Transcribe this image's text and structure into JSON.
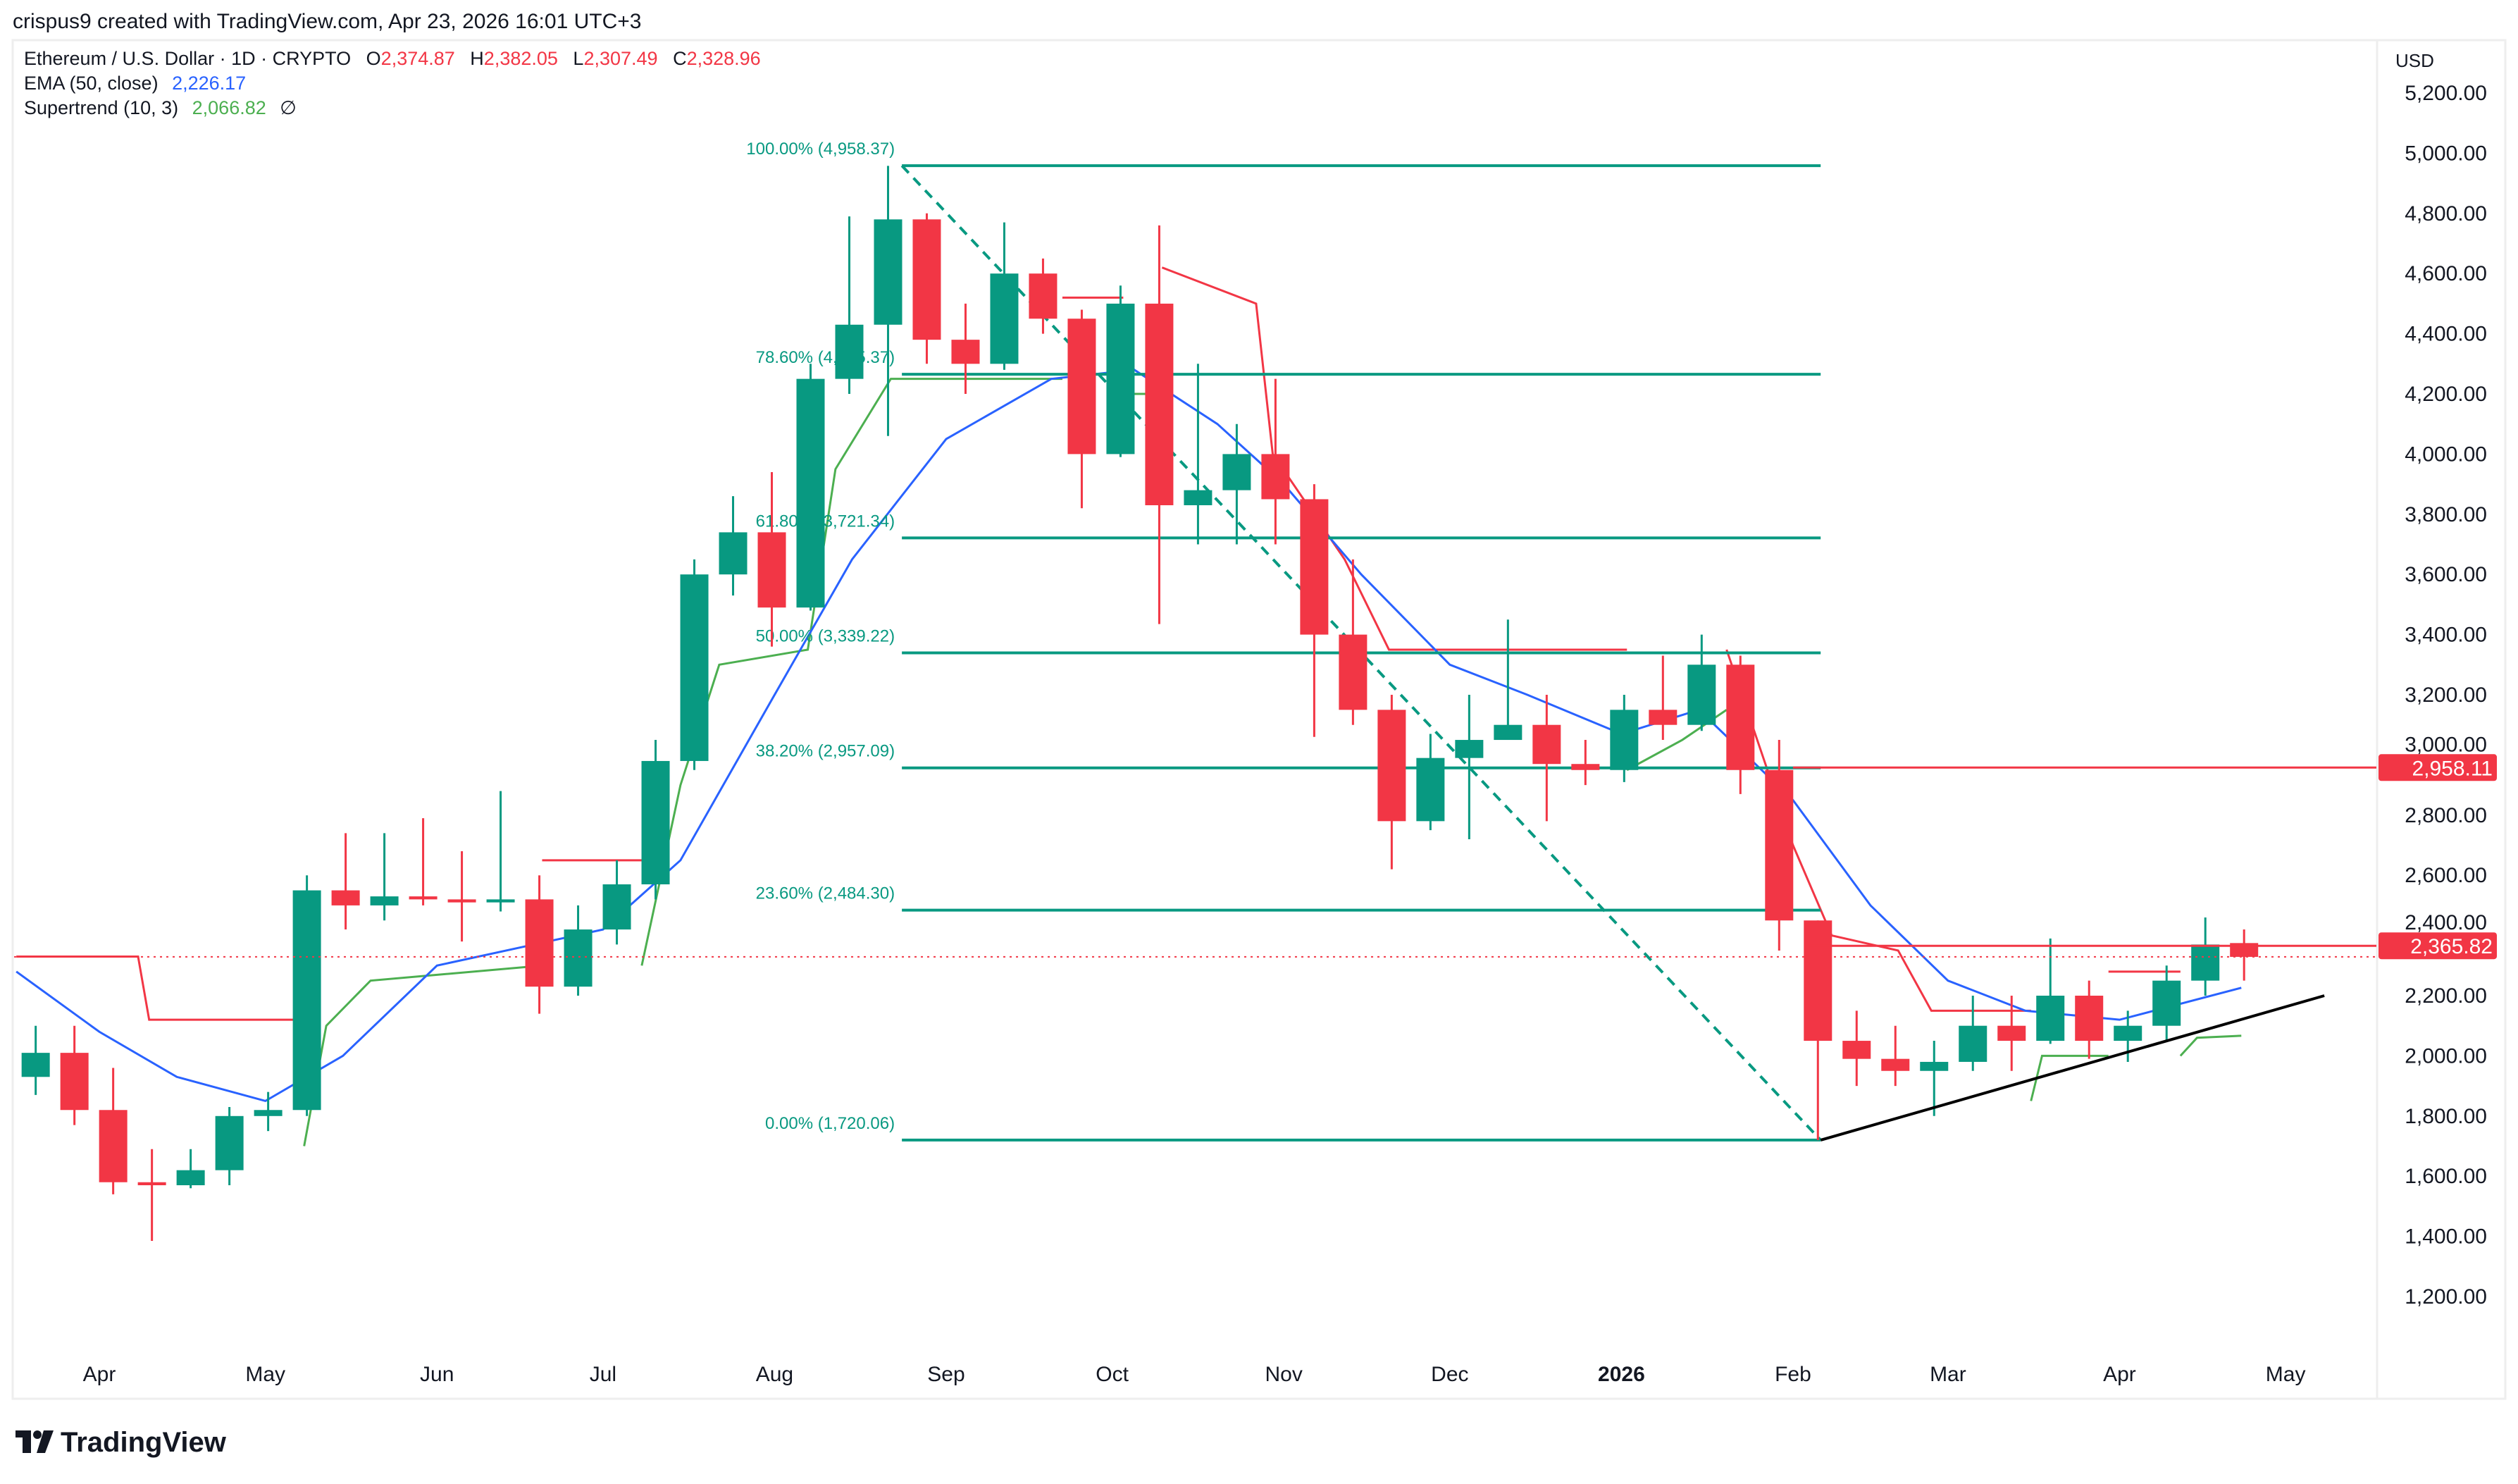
{
  "header": {
    "attribution": "crispus9 created with TradingView.com, Apr 23, 2026 16:01 UTC+3"
  },
  "legend": {
    "symbol": "Ethereum / U.S. Dollar · 1D · CRYPTO",
    "o_label": "O",
    "o": "2,374.87",
    "h_label": "H",
    "h": "2,382.05",
    "l_label": "L",
    "l": "2,307.49",
    "c_label": "C",
    "c": "2,328.96",
    "ema_label": "EMA (50, close)",
    "ema_value": "2,226.17",
    "st_label": "Supertrend (10, 3)",
    "st_value": "2,066.82",
    "st_icon": "∅"
  },
  "colors": {
    "up": "#089981",
    "down": "#f23645",
    "ema": "#2962ff",
    "st_up": "#4caf50",
    "st_down": "#f23645",
    "fib": "#089981"
  },
  "logo": {
    "text": "TradingView"
  },
  "chart_data": {
    "type": "candlestick",
    "interval_shown": "weekly approximation of daily candles",
    "currency": "USD",
    "ylim": [
      1100,
      5350
    ],
    "y_ticks": [
      "5,200.00",
      "5,000.00",
      "4,800.00",
      "4,600.00",
      "4,400.00",
      "4,200.00",
      "4,000.00",
      "3,800.00",
      "3,600.00",
      "3,400.00",
      "3,200.00",
      "3,000.00",
      "2,800.00",
      "2,600.00",
      "2,400.00",
      "2,200.00",
      "2,000.00",
      "1,800.00",
      "1,600.00",
      "1,400.00",
      "1,200.00"
    ],
    "y_tick_values": [
      5200,
      5000,
      4800,
      4600,
      4400,
      4200,
      4000,
      3800,
      3600,
      3400,
      3200,
      3000,
      2800,
      2600,
      2400,
      2200,
      2000,
      1800,
      1600,
      1400,
      1200
    ],
    "x_ticks": [
      {
        "label": "Apr",
        "date": "2025-04-01",
        "bold": false
      },
      {
        "label": "May",
        "date": "2025-05-01",
        "bold": false
      },
      {
        "label": "Jun",
        "date": "2025-06-01",
        "bold": false
      },
      {
        "label": "Jul",
        "date": "2025-07-01",
        "bold": false
      },
      {
        "label": "Aug",
        "date": "2025-08-01",
        "bold": false
      },
      {
        "label": "Sep",
        "date": "2025-09-01",
        "bold": false
      },
      {
        "label": "Oct",
        "date": "2025-10-01",
        "bold": false
      },
      {
        "label": "Nov",
        "date": "2025-11-01",
        "bold": false
      },
      {
        "label": "Dec",
        "date": "2025-12-01",
        "bold": false
      },
      {
        "label": "2026",
        "date": "2026-01-01",
        "bold": true
      },
      {
        "label": "Feb",
        "date": "2026-02-01",
        "bold": false
      },
      {
        "label": "Mar",
        "date": "2026-03-01",
        "bold": false
      },
      {
        "label": "Apr",
        "date": "2026-04-01",
        "bold": false
      },
      {
        "label": "May",
        "date": "2026-05-01",
        "bold": false
      }
    ],
    "candles": [
      [
        "2025-03-17",
        1930,
        2100,
        1870,
        2010
      ],
      [
        "2025-03-24",
        2010,
        2100,
        1770,
        1820
      ],
      [
        "2025-03-31",
        1820,
        1960,
        1540,
        1580
      ],
      [
        "2025-04-07",
        1580,
        1690,
        1385,
        1570
      ],
      [
        "2025-04-14",
        1570,
        1690,
        1560,
        1620
      ],
      [
        "2025-04-21",
        1620,
        1830,
        1570,
        1800
      ],
      [
        "2025-04-28",
        1800,
        1880,
        1750,
        1820
      ],
      [
        "2025-05-05",
        1820,
        2600,
        1800,
        2550
      ],
      [
        "2025-05-12",
        2550,
        2740,
        2420,
        2500
      ],
      [
        "2025-05-19",
        2500,
        2740,
        2450,
        2530
      ],
      [
        "2025-05-26",
        2530,
        2790,
        2500,
        2520
      ],
      [
        "2025-06-02",
        2520,
        2680,
        2380,
        2510
      ],
      [
        "2025-06-09",
        2510,
        2880,
        2480,
        2520
      ],
      [
        "2025-06-16",
        2520,
        2600,
        2140,
        2230
      ],
      [
        "2025-06-23",
        2230,
        2500,
        2200,
        2420
      ],
      [
        "2025-06-30",
        2420,
        2650,
        2370,
        2570
      ],
      [
        "2025-07-07",
        2570,
        3050,
        2520,
        2980
      ],
      [
        "2025-07-14",
        2980,
        3650,
        2950,
        3600
      ],
      [
        "2025-07-21",
        3600,
        3860,
        3530,
        3740
      ],
      [
        "2025-07-28",
        3740,
        3940,
        3360,
        3490
      ],
      [
        "2025-08-04",
        3490,
        4300,
        3480,
        4250
      ],
      [
        "2025-08-11",
        4250,
        4790,
        4200,
        4430
      ],
      [
        "2025-08-18",
        4430,
        4958,
        4060,
        4780
      ],
      [
        "2025-08-25",
        4780,
        4800,
        4300,
        4380
      ],
      [
        "2025-09-01",
        4380,
        4500,
        4200,
        4300
      ],
      [
        "2025-09-08",
        4300,
        4770,
        4280,
        4600
      ],
      [
        "2025-09-15",
        4600,
        4650,
        4400,
        4450
      ],
      [
        "2025-09-22",
        4450,
        4480,
        3820,
        4000
      ],
      [
        "2025-09-29",
        4000,
        4560,
        3990,
        4500
      ],
      [
        "2025-10-06",
        4500,
        4760,
        3435,
        3830
      ],
      [
        "2025-10-13",
        3830,
        4300,
        3700,
        3880
      ],
      [
        "2025-10-20",
        3880,
        4100,
        3700,
        4000
      ],
      [
        "2025-10-27",
        4000,
        4250,
        3700,
        3850
      ],
      [
        "2025-11-03",
        3850,
        3900,
        3060,
        3400
      ],
      [
        "2025-11-10",
        3400,
        3650,
        3100,
        3150
      ],
      [
        "2025-11-17",
        3150,
        3200,
        2620,
        2780
      ],
      [
        "2025-11-24",
        2780,
        3070,
        2750,
        2990
      ],
      [
        "2025-12-01",
        2990,
        3200,
        2720,
        3050
      ],
      [
        "2025-12-08",
        3050,
        3450,
        3050,
        3100
      ],
      [
        "2025-12-15",
        3100,
        3200,
        2780,
        2970
      ],
      [
        "2025-12-22",
        2970,
        3050,
        2900,
        2950
      ],
      [
        "2025-12-29",
        2950,
        3200,
        2910,
        3150
      ],
      [
        "2026-01-05",
        3150,
        3330,
        3050,
        3100
      ],
      [
        "2026-01-12",
        3100,
        3400,
        3080,
        3300
      ],
      [
        "2026-01-19",
        3300,
        3330,
        2870,
        2950
      ],
      [
        "2026-01-26",
        2950,
        3050,
        2350,
        2450
      ],
      [
        "2026-02-02",
        2450,
        2450,
        1720,
        2050
      ],
      [
        "2026-02-09",
        2050,
        2150,
        1900,
        1990
      ],
      [
        "2026-02-16",
        1990,
        2100,
        1900,
        1950
      ],
      [
        "2026-02-23",
        1950,
        2050,
        1800,
        1980
      ],
      [
        "2026-03-02",
        1980,
        2200,
        1950,
        2100
      ],
      [
        "2026-03-09",
        2100,
        2200,
        1950,
        2050
      ],
      [
        "2026-03-16",
        2050,
        2390,
        2040,
        2200
      ],
      [
        "2026-03-23",
        2200,
        2250,
        1990,
        2050
      ],
      [
        "2026-03-30",
        2050,
        2150,
        1980,
        2100
      ],
      [
        "2026-04-06",
        2100,
        2300,
        2050,
        2250
      ],
      [
        "2026-04-13",
        2250,
        2460,
        2200,
        2370
      ],
      [
        "2026-04-20",
        2374.87,
        2420,
        2250,
        2328.96
      ]
    ],
    "ema50": [
      [
        "2025-03-17",
        2280
      ],
      [
        "2025-04-01",
        2080
      ],
      [
        "2025-04-15",
        1930
      ],
      [
        "2025-05-01",
        1850
      ],
      [
        "2025-05-15",
        2000
      ],
      [
        "2025-06-01",
        2300
      ],
      [
        "2025-07-01",
        2420
      ],
      [
        "2025-07-15",
        2650
      ],
      [
        "2025-08-01",
        3200
      ],
      [
        "2025-08-15",
        3650
      ],
      [
        "2025-09-01",
        4050
      ],
      [
        "2025-09-20",
        4250
      ],
      [
        "2025-10-05",
        4280
      ],
      [
        "2025-10-20",
        4100
      ],
      [
        "2025-11-01",
        3900
      ],
      [
        "2025-11-15",
        3600
      ],
      [
        "2025-12-01",
        3300
      ],
      [
        "2025-12-15",
        3200
      ],
      [
        "2026-01-01",
        3070
      ],
      [
        "2026-01-15",
        3150
      ],
      [
        "2026-02-01",
        2850
      ],
      [
        "2026-02-15",
        2500
      ],
      [
        "2026-03-01",
        2250
      ],
      [
        "2026-03-15",
        2150
      ],
      [
        "2026-04-01",
        2120
      ],
      [
        "2026-04-23",
        2226.17
      ]
    ],
    "supertrend": [
      {
        "dir": "down",
        "points": [
          [
            "2025-03-17",
            2330
          ],
          [
            "2025-04-08",
            2330
          ],
          [
            "2025-04-10",
            2120
          ],
          [
            "2025-05-08",
            2120
          ]
        ]
      },
      {
        "dir": "up",
        "points": [
          [
            "2025-05-08",
            1700
          ],
          [
            "2025-05-12",
            2100
          ],
          [
            "2025-05-20",
            2250
          ],
          [
            "2025-06-20",
            2300
          ]
        ]
      },
      {
        "dir": "down",
        "points": [
          [
            "2025-06-20",
            2650
          ],
          [
            "2025-07-08",
            2650
          ]
        ]
      },
      {
        "dir": "up",
        "points": [
          [
            "2025-07-08",
            2300
          ],
          [
            "2025-07-15",
            2900
          ],
          [
            "2025-07-22",
            3300
          ],
          [
            "2025-08-07",
            3350
          ],
          [
            "2025-08-12",
            3950
          ],
          [
            "2025-08-22",
            4250
          ],
          [
            "2025-09-22",
            4250
          ]
        ]
      },
      {
        "dir": "down",
        "points": [
          [
            "2025-09-22",
            4520
          ],
          [
            "2025-10-03",
            4520
          ]
        ]
      },
      {
        "dir": "up",
        "points": [
          [
            "2025-10-03",
            4200
          ],
          [
            "2025-10-10",
            4200
          ]
        ]
      },
      {
        "dir": "down",
        "points": [
          [
            "2025-10-10",
            4620
          ],
          [
            "2025-10-27",
            4500
          ],
          [
            "2025-10-30",
            4000
          ],
          [
            "2025-11-12",
            3650
          ],
          [
            "2025-11-20",
            3350
          ],
          [
            "2026-01-02",
            3350
          ]
        ]
      },
      {
        "dir": "up",
        "points": [
          [
            "2026-01-02",
            2950
          ],
          [
            "2026-01-12",
            3050
          ],
          [
            "2026-01-20",
            3150
          ]
        ]
      },
      {
        "dir": "down",
        "points": [
          [
            "2026-01-20",
            3350
          ],
          [
            "2026-02-01",
            2700
          ],
          [
            "2026-02-08",
            2400
          ],
          [
            "2026-02-20",
            2350
          ],
          [
            "2026-02-26",
            2150
          ],
          [
            "2026-03-16",
            2150
          ]
        ]
      },
      {
        "dir": "up",
        "points": [
          [
            "2026-03-16",
            1850
          ],
          [
            "2026-03-18",
            2000
          ],
          [
            "2026-03-30",
            2000
          ]
        ]
      },
      {
        "dir": "down",
        "points": [
          [
            "2026-03-30",
            2280
          ],
          [
            "2026-04-12",
            2280
          ]
        ]
      },
      {
        "dir": "up",
        "points": [
          [
            "2026-04-12",
            2000
          ],
          [
            "2026-04-15",
            2060
          ],
          [
            "2026-04-23",
            2066.82
          ]
        ]
      }
    ],
    "fibonacci": {
      "from": [
        "2025-08-24",
        4958.37
      ],
      "to": [
        "2026-02-06",
        1720.06
      ],
      "levels": [
        {
          "label": "100.00% (4,958.37)",
          "value": 4958.37
        },
        {
          "label": "78.60% (4,265.37)",
          "value": 4265.37
        },
        {
          "label": "61.80% (3,721.34)",
          "value": 3721.34
        },
        {
          "label": "50.00% (3,339.22)",
          "value": 3339.22
        },
        {
          "label": "38.20% (2,957.09)",
          "value": 2957.09
        },
        {
          "label": "23.60% (2,484.30)",
          "value": 2484.3
        },
        {
          "label": "0.00% (1,720.06)",
          "value": 1720.06
        }
      ]
    },
    "horizontal_lines": [
      {
        "value": 2958.11,
        "label": "2,958.11",
        "from": "2026-02-01"
      },
      {
        "value": 2365.82,
        "label": "2,365.82",
        "from": "2026-02-04"
      }
    ],
    "last_price": 2328.96,
    "trendline": {
      "from": [
        "2026-02-06",
        1720
      ],
      "to": [
        "2026-05-08",
        2200
      ]
    },
    "axis_unit_label": "USD"
  }
}
